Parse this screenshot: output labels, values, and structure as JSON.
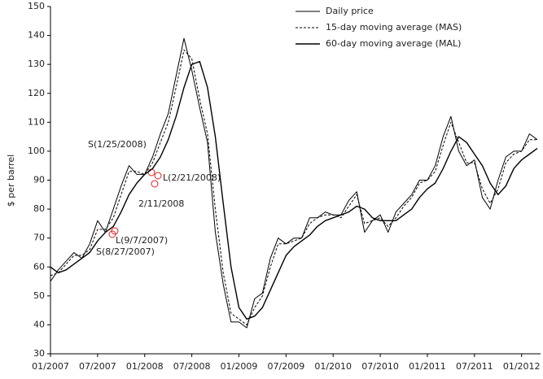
{
  "chart_data": {
    "type": "line",
    "y_label": "$ per barrel",
    "x": [
      "2007-01",
      "2007-02",
      "2007-03",
      "2007-04",
      "2007-05",
      "2007-06",
      "2007-07",
      "2007-08",
      "2007-09",
      "2007-10",
      "2007-11",
      "2007-12",
      "2008-01",
      "2008-02",
      "2008-03",
      "2008-04",
      "2008-05",
      "2008-06",
      "2008-07",
      "2008-08",
      "2008-09",
      "2008-10",
      "2008-11",
      "2008-12",
      "2009-01",
      "2009-02",
      "2009-03",
      "2009-04",
      "2009-05",
      "2009-06",
      "2009-07",
      "2009-08",
      "2009-09",
      "2009-10",
      "2009-11",
      "2009-12",
      "2010-01",
      "2010-02",
      "2010-03",
      "2010-04",
      "2010-05",
      "2010-06",
      "2010-07",
      "2010-08",
      "2010-09",
      "2010-10",
      "2010-11",
      "2010-12",
      "2011-01",
      "2011-02",
      "2011-03",
      "2011-04",
      "2011-05",
      "2011-06",
      "2011-07",
      "2011-08",
      "2011-09",
      "2011-10",
      "2011-11",
      "2011-12",
      "2012-01",
      "2012-02",
      "2012-03"
    ],
    "series": [
      {
        "name": "Daily price",
        "color": "#000000",
        "dash": false,
        "width": 1,
        "values": [
          55,
          59,
          62,
          65,
          63,
          68,
          76,
          72,
          80,
          88,
          95,
          92,
          92,
          98,
          106,
          113,
          126,
          139,
          128,
          115,
          103,
          72,
          54,
          41,
          41,
          39,
          49,
          51,
          63,
          70,
          68,
          70,
          70,
          77,
          77,
          79,
          78,
          78,
          83,
          86,
          72,
          76,
          78,
          72,
          79,
          82,
          85,
          90,
          90,
          95,
          105,
          112,
          100,
          95,
          97,
          84,
          80,
          90,
          98,
          100,
          100,
          106,
          104
        ]
      },
      {
        "name": "15-day moving average (MAS)",
        "color": "#000000",
        "dash": true,
        "width": 1,
        "values": [
          57,
          58,
          61,
          64,
          64,
          66,
          73,
          73,
          77,
          85,
          93,
          93,
          92,
          96,
          103,
          110,
          122,
          135,
          132,
          118,
          106,
          80,
          58,
          44,
          42,
          40,
          46,
          50,
          60,
          68,
          68,
          69,
          70,
          75,
          77,
          78,
          78,
          77,
          81,
          85,
          75,
          76,
          77,
          74,
          77,
          81,
          84,
          89,
          90,
          93,
          102,
          110,
          103,
          96,
          96,
          87,
          82,
          87,
          96,
          99,
          100,
          104,
          104
        ]
      },
      {
        "name": "60-day moving average (MAL)",
        "color": "#000000",
        "dash": false,
        "width": 1.4,
        "values": [
          60,
          58,
          59,
          61,
          63,
          65,
          69,
          72,
          74,
          79,
          85,
          89,
          92,
          94,
          98,
          104,
          112,
          122,
          130,
          131,
          122,
          105,
          82,
          60,
          46,
          42,
          43,
          46,
          52,
          58,
          64,
          67,
          69,
          71,
          74,
          76,
          77,
          78,
          79,
          81,
          80,
          77,
          76,
          76,
          76,
          78,
          80,
          84,
          87,
          89,
          94,
          100,
          105,
          103,
          99,
          95,
          89,
          85,
          88,
          94,
          97,
          99,
          101
        ]
      }
    ],
    "xlim": [
      "2007-01",
      "2012-03"
    ],
    "xticks": [
      {
        "value": "2007-01",
        "label": "01/2007"
      },
      {
        "value": "2007-07",
        "label": "07/2007"
      },
      {
        "value": "2008-01",
        "label": "01/2008"
      },
      {
        "value": "2008-07",
        "label": "07/2008"
      },
      {
        "value": "2009-01",
        "label": "01/2009"
      },
      {
        "value": "2009-07",
        "label": "07/2009"
      },
      {
        "value": "2010-01",
        "label": "01/2010"
      },
      {
        "value": "2010-07",
        "label": "07/2010"
      },
      {
        "value": "2011-01",
        "label": "01/2011"
      },
      {
        "value": "2011-07",
        "label": "07/2011"
      },
      {
        "value": "2012-01",
        "label": "01/2012"
      }
    ],
    "ylim": [
      30,
      150
    ],
    "yticks": [
      30,
      40,
      50,
      60,
      70,
      80,
      90,
      100,
      110,
      120,
      130,
      140,
      150
    ],
    "grid": false,
    "legend": "top-right",
    "annotations": [
      "S(1/25/2008)",
      "L(2/21/2008)",
      "2/11/2008",
      "L(9/7/2007)",
      "S(8/27/2007)"
    ]
  }
}
